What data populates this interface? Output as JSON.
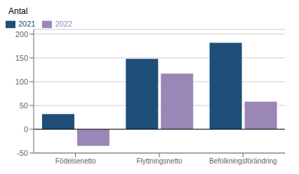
{
  "chart_data": {
    "type": "bar",
    "categories": [
      "Födelsenetto",
      "Flyttningsnetto",
      "Befolkningsförändring"
    ],
    "series": [
      {
        "name": "2021",
        "color": "#1f4e79",
        "values": [
          32,
          148,
          182
        ]
      },
      {
        "name": "2022",
        "color": "#9b86b8",
        "values": [
          -35,
          117,
          58
        ]
      }
    ],
    "ylabel": "Antal",
    "ylim": [
      -50,
      210
    ],
    "yticks": [
      -50,
      0,
      50,
      100,
      150,
      200
    ],
    "grid": true,
    "legend": "upper left"
  }
}
